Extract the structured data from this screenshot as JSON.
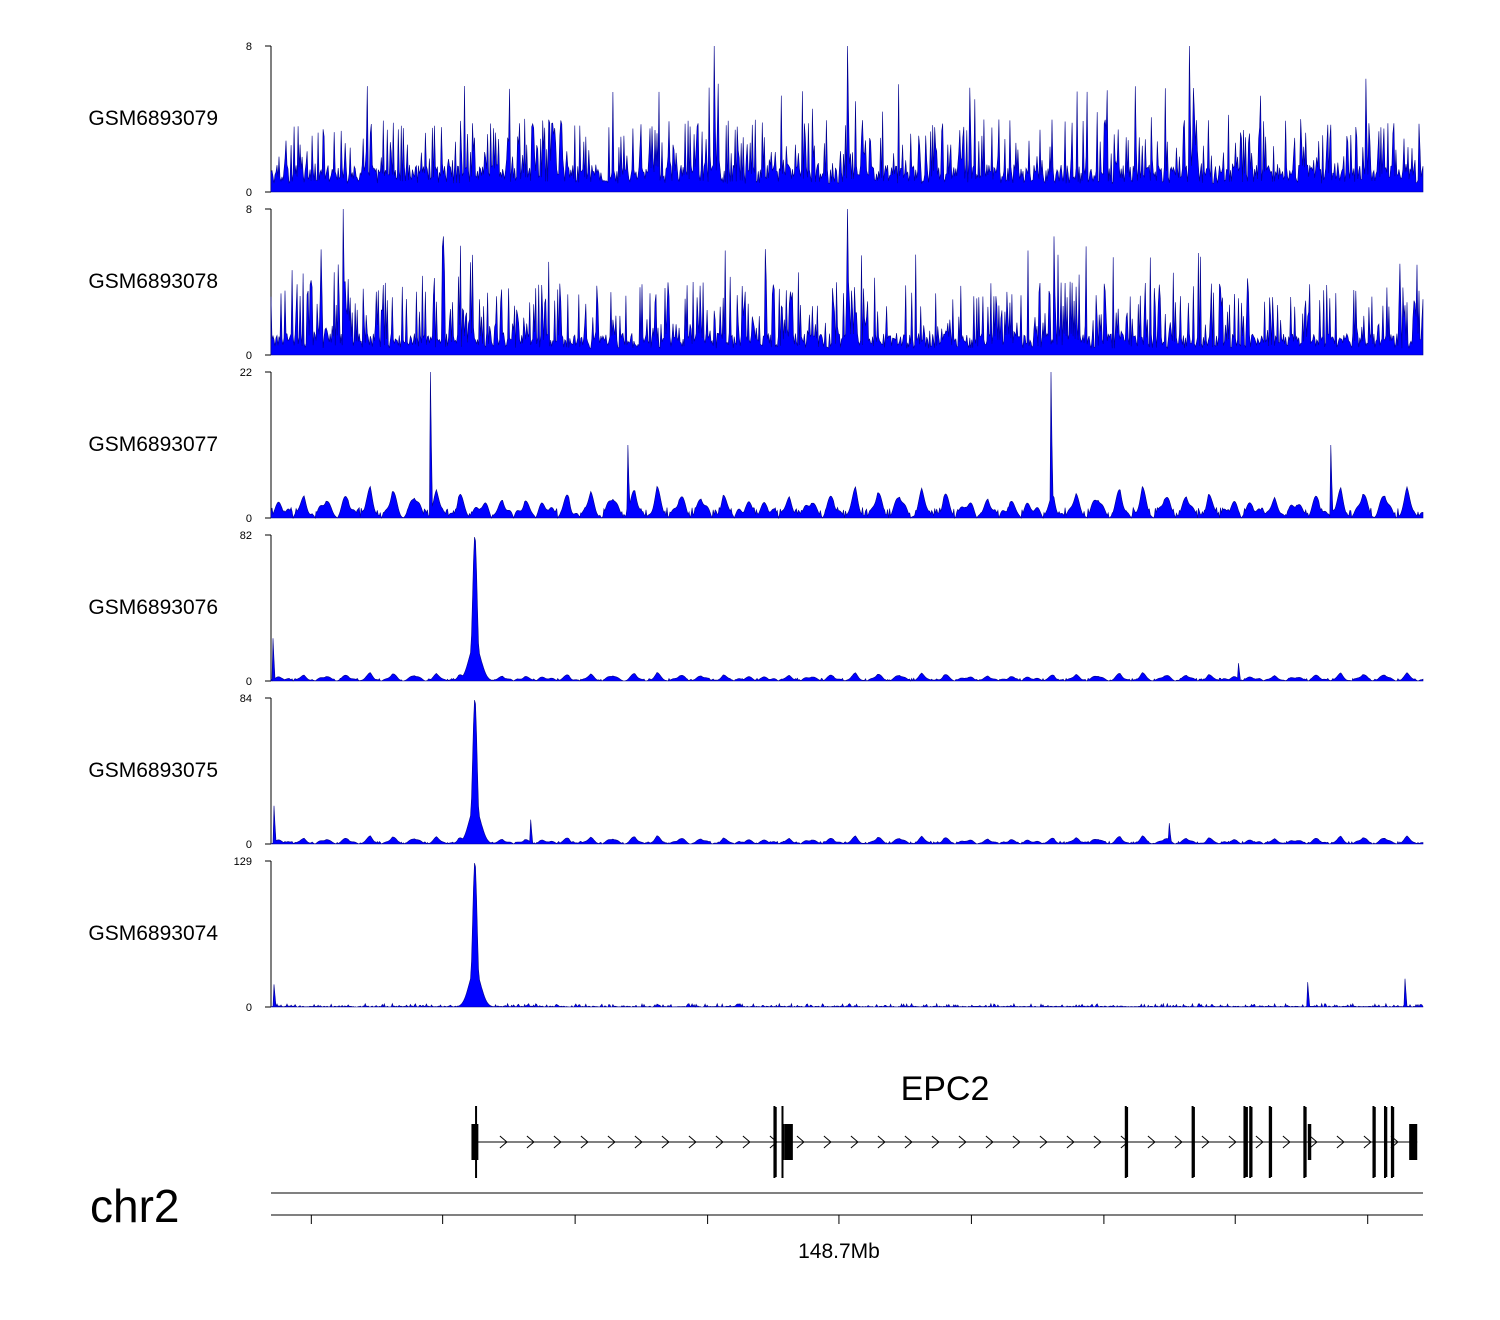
{
  "chart_data": {
    "type": "area",
    "description_kind": "genome coverage tracks",
    "series_color": "#0000ff",
    "series_edge_color": "#00008b",
    "tracks": [
      {
        "name": "GSM6893079",
        "ymax": 8,
        "ymin": 0,
        "baseline": 1.5,
        "peaks": [],
        "spikes": [
          [
            0.385,
            8
          ],
          [
            0.5,
            8
          ],
          [
            0.797,
            8
          ],
          [
            0.95,
            6.2
          ]
        ],
        "noise": "dense",
        "noise_level": 3.0
      },
      {
        "name": "GSM6893078",
        "ymax": 8,
        "ymin": 0,
        "baseline": 1.2,
        "peaks": [],
        "spikes": [
          [
            0.063,
            8
          ],
          [
            0.5,
            8
          ],
          [
            0.15,
            6.5
          ],
          [
            0.68,
            6.5
          ],
          [
            0.98,
            5
          ]
        ],
        "noise": "dense",
        "noise_level": 3.0
      },
      {
        "name": "GSM6893077",
        "ymax": 22,
        "ymin": 0,
        "baseline": 0.5,
        "peaks": [],
        "spikes": [
          [
            0.138,
            22
          ],
          [
            0.677,
            22
          ],
          [
            0.31,
            11
          ],
          [
            0.92,
            11
          ]
        ],
        "noise": "triangles",
        "noise_level": 5.0
      },
      {
        "name": "GSM6893076",
        "ymax": 82,
        "ymin": 0,
        "baseline": 1,
        "peaks": [
          [
            0.177,
            82
          ]
        ],
        "spikes": [
          [
            0.002,
            24
          ],
          [
            0.84,
            10
          ]
        ],
        "noise": "triangles",
        "noise_level": 5.0
      },
      {
        "name": "GSM6893075",
        "ymax": 84,
        "ymin": 0,
        "baseline": 1,
        "peaks": [
          [
            0.177,
            84
          ]
        ],
        "spikes": [
          [
            0.003,
            22
          ],
          [
            0.225,
            14
          ],
          [
            0.78,
            12
          ]
        ],
        "noise": "triangles",
        "noise_level": 5.0
      },
      {
        "name": "GSM6893074",
        "ymax": 129,
        "ymin": 0,
        "baseline": 1,
        "peaks": [
          [
            0.177,
            129
          ]
        ],
        "spikes": [
          [
            0.003,
            20
          ],
          [
            0.9,
            22
          ],
          [
            0.984,
            25
          ]
        ],
        "noise": "sparse",
        "noise_level": 3.0
      }
    ],
    "gene": {
      "name": "EPC2",
      "strand": "+",
      "start": 0.177,
      "end": 0.995,
      "exons": [
        {
          "start": 0.174,
          "end": 0.18,
          "tall": true
        },
        {
          "start": 0.437,
          "end": 0.439,
          "tall": false
        },
        {
          "start": 0.444,
          "end": 0.446,
          "tall": true
        },
        {
          "start": 0.446,
          "end": 0.453,
          "tall": true
        },
        {
          "start": 0.742,
          "end": 0.744,
          "tall": false
        },
        {
          "start": 0.8,
          "end": 0.802,
          "tall": false
        },
        {
          "start": 0.845,
          "end": 0.848,
          "tall": false
        },
        {
          "start": 0.85,
          "end": 0.852,
          "tall": false
        },
        {
          "start": 0.867,
          "end": 0.869,
          "tall": false
        },
        {
          "start": 0.897,
          "end": 0.899,
          "tall": false
        },
        {
          "start": 0.9,
          "end": 0.903,
          "tall": true
        },
        {
          "start": 0.957,
          "end": 0.959,
          "tall": false
        },
        {
          "start": 0.967,
          "end": 0.969,
          "tall": false
        },
        {
          "start": 0.973,
          "end": 0.975,
          "tall": false
        },
        {
          "start": 0.988,
          "end": 0.995,
          "tall": true
        }
      ]
    },
    "chromosome": "chr2",
    "axis": {
      "label": "148.7Mb",
      "label_position": 0.5,
      "tick_fractions": [
        0.035,
        0.149,
        0.264,
        0.379,
        0.493,
        0.608,
        0.723,
        0.837,
        0.952
      ]
    }
  }
}
